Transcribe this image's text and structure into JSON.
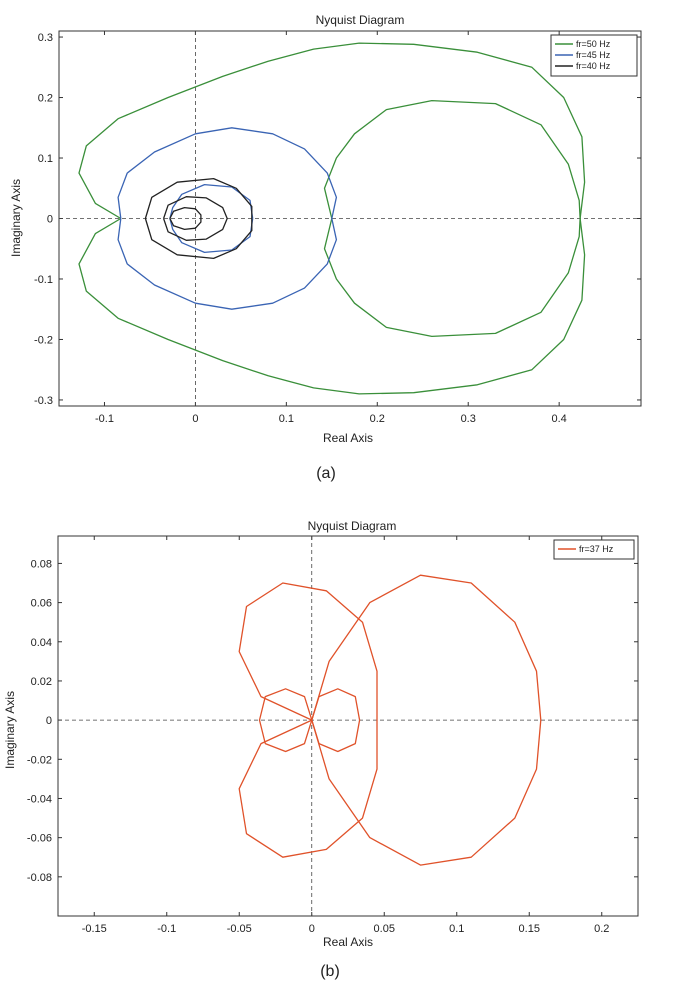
{
  "chart_data": [
    {
      "type": "line",
      "panel": "(a)",
      "title": "Nyquist Diagram",
      "xlabel": "Real Axis",
      "ylabel": "Imaginary Axis",
      "xlim": [
        -0.15,
        0.49
      ],
      "ylim": [
        -0.31,
        0.31
      ],
      "xticks": [
        "-0.1",
        "0",
        "0.1",
        "0.2",
        "0.3",
        "0.4"
      ],
      "yticks": [
        "-0.3",
        "-0.2",
        "-0.1",
        "0",
        "0.1",
        "0.2",
        "0.3"
      ],
      "grid": false,
      "legend_position": "top-right",
      "series": [
        {
          "name": "fr=50 Hz",
          "color": "#3a8f3a",
          "paths": [
            [
              [
                -0.082,
                0
              ],
              [
                -0.11,
                0.025
              ],
              [
                -0.128,
                0.075
              ],
              [
                -0.12,
                0.12
              ],
              [
                -0.085,
                0.165
              ],
              [
                -0.03,
                0.2
              ],
              [
                0.03,
                0.235
              ],
              [
                0.08,
                0.26
              ],
              [
                0.13,
                0.28
              ],
              [
                0.18,
                0.29
              ],
              [
                0.24,
                0.288
              ],
              [
                0.31,
                0.275
              ],
              [
                0.37,
                0.25
              ],
              [
                0.405,
                0.2
              ],
              [
                0.425,
                0.135
              ],
              [
                0.428,
                0.06
              ],
              [
                0.423,
                0
              ],
              [
                0.428,
                -0.06
              ],
              [
                0.425,
                -0.135
              ],
              [
                0.405,
                -0.2
              ],
              [
                0.37,
                -0.25
              ],
              [
                0.31,
                -0.275
              ],
              [
                0.24,
                -0.288
              ],
              [
                0.18,
                -0.29
              ],
              [
                0.13,
                -0.28
              ],
              [
                0.08,
                -0.26
              ],
              [
                0.03,
                -0.235
              ],
              [
                -0.03,
                -0.2
              ],
              [
                -0.085,
                -0.165
              ],
              [
                -0.12,
                -0.12
              ],
              [
                -0.128,
                -0.075
              ],
              [
                -0.11,
                -0.025
              ],
              [
                -0.082,
                0
              ]
            ],
            [
              [
                0.15,
                0
              ],
              [
                0.142,
                0.05
              ],
              [
                0.155,
                0.1
              ],
              [
                0.175,
                0.14
              ],
              [
                0.21,
                0.18
              ],
              [
                0.26,
                0.195
              ],
              [
                0.33,
                0.19
              ],
              [
                0.38,
                0.155
              ],
              [
                0.41,
                0.09
              ],
              [
                0.422,
                0.03
              ],
              [
                0.423,
                0
              ],
              [
                0.422,
                -0.03
              ],
              [
                0.41,
                -0.09
              ],
              [
                0.38,
                -0.155
              ],
              [
                0.33,
                -0.19
              ],
              [
                0.26,
                -0.195
              ],
              [
                0.21,
                -0.18
              ],
              [
                0.175,
                -0.14
              ],
              [
                0.155,
                -0.1
              ],
              [
                0.142,
                -0.05
              ],
              [
                0.15,
                0
              ]
            ]
          ]
        },
        {
          "name": "fr=45 Hz",
          "color": "#3a64b4",
          "paths": [
            [
              [
                -0.082,
                0
              ],
              [
                -0.085,
                0.035
              ],
              [
                -0.075,
                0.075
              ],
              [
                -0.045,
                0.11
              ],
              [
                0,
                0.14
              ],
              [
                0.04,
                0.15
              ],
              [
                0.085,
                0.14
              ],
              [
                0.12,
                0.115
              ],
              [
                0.145,
                0.075
              ],
              [
                0.155,
                0.035
              ],
              [
                0.15,
                0
              ],
              [
                0.155,
                -0.035
              ],
              [
                0.145,
                -0.075
              ],
              [
                0.12,
                -0.115
              ],
              [
                0.085,
                -0.14
              ],
              [
                0.04,
                -0.15
              ],
              [
                0,
                -0.14
              ],
              [
                -0.045,
                -0.11
              ],
              [
                -0.075,
                -0.075
              ],
              [
                -0.085,
                -0.035
              ],
              [
                -0.082,
                0
              ]
            ],
            [
              [
                0.063,
                0
              ],
              [
                0.06,
                0.03
              ],
              [
                0.04,
                0.052
              ],
              [
                0.01,
                0.056
              ],
              [
                -0.015,
                0.04
              ],
              [
                -0.025,
                0.018
              ],
              [
                -0.028,
                0
              ],
              [
                -0.025,
                -0.018
              ],
              [
                -0.015,
                -0.04
              ],
              [
                0.01,
                -0.056
              ],
              [
                0.04,
                -0.052
              ],
              [
                0.06,
                -0.03
              ],
              [
                0.063,
                0
              ]
            ]
          ]
        },
        {
          "name": "fr=40 Hz",
          "color": "#222222",
          "paths": [
            [
              [
                -0.055,
                0
              ],
              [
                -0.048,
                0.035
              ],
              [
                -0.02,
                0.06
              ],
              [
                0.02,
                0.066
              ],
              [
                0.045,
                0.05
              ],
              [
                0.062,
                0.02
              ],
              [
                0.062,
                0
              ],
              [
                0.062,
                -0.02
              ],
              [
                0.045,
                -0.05
              ],
              [
                0.02,
                -0.066
              ],
              [
                -0.02,
                -0.06
              ],
              [
                -0.048,
                -0.035
              ],
              [
                -0.055,
                0
              ]
            ],
            [
              [
                -0.035,
                0
              ],
              [
                -0.03,
                0.022
              ],
              [
                -0.01,
                0.036
              ],
              [
                0.012,
                0.034
              ],
              [
                0.03,
                0.018
              ],
              [
                0.035,
                0
              ],
              [
                0.03,
                -0.018
              ],
              [
                0.012,
                -0.034
              ],
              [
                -0.01,
                -0.036
              ],
              [
                -0.03,
                -0.022
              ],
              [
                -0.035,
                0
              ]
            ],
            [
              [
                -0.028,
                0
              ],
              [
                -0.024,
                0.012
              ],
              [
                -0.012,
                0.018
              ],
              [
                0,
                0.016
              ],
              [
                0.006,
                0.006
              ],
              [
                0.006,
                -0.006
              ],
              [
                0,
                -0.016
              ],
              [
                -0.012,
                -0.018
              ],
              [
                -0.024,
                -0.012
              ],
              [
                -0.028,
                0
              ]
            ]
          ]
        }
      ]
    },
    {
      "type": "line",
      "panel": "(b)",
      "title": "Nyquist Diagram",
      "xlabel": "Real Axis",
      "ylabel": "Imaginary Axis",
      "xlim": [
        -0.175,
        0.225
      ],
      "ylim": [
        -0.1,
        0.094
      ],
      "xticks": [
        "-0.15",
        "-0.1",
        "-0.05",
        "0",
        "0.05",
        "0.1",
        "0.15",
        "0.2"
      ],
      "yticks": [
        "0.08",
        "0.06",
        "0.04",
        "0.02",
        "0",
        "-0.02",
        "-0.04",
        "-0.06",
        "-0.08"
      ],
      "ytick_values": [
        0.08,
        0.06,
        0.04,
        0.02,
        0,
        -0.02,
        -0.04,
        -0.06,
        -0.08
      ],
      "grid": false,
      "legend_position": "top-right",
      "series": [
        {
          "name": "fr=37 Hz",
          "color": "#e0522a",
          "paths": [
            [
              [
                0,
                0
              ],
              [
                0.012,
                0.03
              ],
              [
                0.04,
                0.06
              ],
              [
                0.075,
                0.074
              ],
              [
                0.11,
                0.07
              ],
              [
                0.14,
                0.05
              ],
              [
                0.155,
                0.025
              ],
              [
                0.158,
                0
              ],
              [
                0.155,
                -0.025
              ],
              [
                0.14,
                -0.05
              ],
              [
                0.11,
                -0.07
              ],
              [
                0.075,
                -0.074
              ],
              [
                0.04,
                -0.06
              ],
              [
                0.012,
                -0.03
              ],
              [
                0,
                0
              ]
            ],
            [
              [
                0,
                0
              ],
              [
                -0.035,
                0.012
              ],
              [
                -0.05,
                0.035
              ],
              [
                -0.045,
                0.058
              ],
              [
                -0.02,
                0.07
              ],
              [
                0.01,
                0.066
              ],
              [
                0.035,
                0.05
              ],
              [
                0.045,
                0.025
              ],
              [
                0.045,
                0
              ],
              [
                0.045,
                -0.025
              ],
              [
                0.035,
                -0.05
              ],
              [
                0.01,
                -0.066
              ],
              [
                -0.02,
                -0.07
              ],
              [
                -0.045,
                -0.058
              ],
              [
                -0.05,
                -0.035
              ],
              [
                -0.035,
                -0.012
              ],
              [
                0,
                0
              ]
            ],
            [
              [
                0,
                0
              ],
              [
                -0.005,
                0.012
              ],
              [
                -0.018,
                0.016
              ],
              [
                -0.032,
                0.012
              ],
              [
                -0.036,
                0
              ],
              [
                -0.032,
                -0.012
              ],
              [
                -0.018,
                -0.016
              ],
              [
                -0.005,
                -0.012
              ],
              [
                0,
                0
              ]
            ],
            [
              [
                0,
                0
              ],
              [
                0.005,
                0.012
              ],
              [
                0.018,
                0.016
              ],
              [
                0.03,
                0.012
              ],
              [
                0.033,
                0
              ],
              [
                0.03,
                -0.012
              ],
              [
                0.018,
                -0.016
              ],
              [
                0.005,
                -0.012
              ],
              [
                0,
                0
              ]
            ]
          ]
        }
      ]
    }
  ],
  "captions": [
    "(a)",
    "(b)"
  ]
}
